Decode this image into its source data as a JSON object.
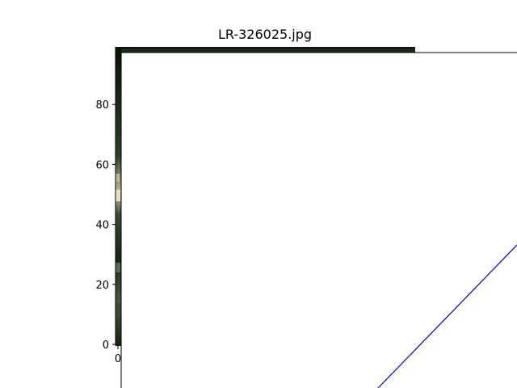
{
  "title": "LR-326025.jpg",
  "chart_data": {
    "type": "image",
    "title": "LR-326025.jpg",
    "xlabel": "",
    "ylabel": "",
    "y_ticks": [
      0,
      20,
      40,
      60,
      80
    ],
    "x_ticks": [
      0
    ],
    "ylim": [
      0,
      100
    ],
    "grid": false,
    "image_colors": {
      "frame": "#050805",
      "vegetation_dark": "#1f2f1c",
      "vegetation_mid": "#3f5138",
      "highlight": "#e6e1c8",
      "shadow": "#0b120b"
    },
    "overlay": {
      "fill": "#ffffff",
      "border": "#000000",
      "line_color": "#0000cc"
    }
  }
}
